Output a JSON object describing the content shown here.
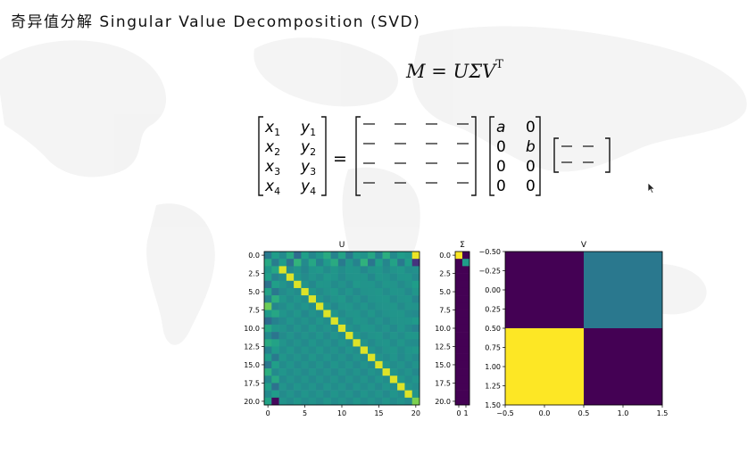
{
  "slide": {
    "title": "奇异值分解 Singular Value Decomposition (SVD)"
  },
  "formula": {
    "lhs": "M",
    "equals": "=",
    "rhs_main": "UΣV",
    "rhs_sup": "T"
  },
  "matrix_equation": {
    "lhs_rows": [
      [
        "x1",
        "y1"
      ],
      [
        "x2",
        "y2"
      ],
      [
        "x3",
        "y3"
      ],
      [
        "x4",
        "y4"
      ]
    ],
    "equals": "=",
    "u_rows": 4,
    "u_cols": 4,
    "sigma_rows": [
      [
        "a",
        "0"
      ],
      [
        "0",
        "b"
      ],
      [
        "0",
        "0"
      ],
      [
        "0",
        "0"
      ]
    ],
    "vt_rows": 2,
    "vt_cols": 2
  },
  "chart_data": [
    {
      "type": "heatmap",
      "title": "U",
      "shape": [
        21,
        21
      ],
      "xticks": [
        "0",
        "5",
        "10",
        "15",
        "20"
      ],
      "yticks": [
        "0.0",
        "2.5",
        "5.0",
        "7.5",
        "10.0",
        "12.5",
        "15.0",
        "17.5",
        "20.0"
      ],
      "cells": [
        [
          -0.18,
          0.1,
          -0.05,
          0.2,
          -0.3,
          0.12,
          -0.08,
          0.05,
          0.22,
          -0.1,
          0.15,
          -0.2,
          0.08,
          0.02,
          0.18,
          -0.12,
          0.25,
          -0.05,
          0.1,
          0.05,
          0.95
        ],
        [
          0.2,
          -0.15,
          0.1,
          -0.25,
          0.3,
          -0.05,
          0.18,
          -0.12,
          0.08,
          0.22,
          -0.18,
          0.05,
          -0.1,
          0.28,
          -0.22,
          0.12,
          -0.08,
          0.15,
          -0.2,
          0.1,
          -0.7
        ],
        [
          0.05,
          0.18,
          0.9,
          -0.05,
          0.02,
          -0.08,
          0.04,
          0.06,
          -0.03,
          0.05,
          -0.02,
          0.04,
          0.03,
          -0.06,
          0.02,
          0.05,
          -0.04,
          0.03,
          0.06,
          -0.02,
          0.0
        ],
        [
          0.12,
          -0.1,
          -0.02,
          0.9,
          0.05,
          -0.04,
          0.03,
          -0.02,
          0.06,
          0.04,
          -0.05,
          0.02,
          0.03,
          0.04,
          -0.06,
          0.05,
          0.02,
          -0.03,
          0.04,
          0.05,
          -0.05
        ],
        [
          -0.25,
          0.12,
          0.03,
          -0.05,
          0.9,
          0.02,
          -0.06,
          0.05,
          0.04,
          -0.03,
          0.02,
          -0.05,
          0.06,
          0.03,
          0.04,
          -0.02,
          0.05,
          0.03,
          -0.04,
          0.02,
          0.1
        ],
        [
          0.15,
          -0.2,
          -0.04,
          0.02,
          -0.03,
          0.9,
          0.05,
          -0.04,
          0.02,
          0.06,
          -0.03,
          0.04,
          -0.05,
          0.02,
          0.03,
          0.05,
          -0.02,
          0.04,
          0.03,
          -0.05,
          0.05
        ],
        [
          -0.1,
          0.25,
          0.05,
          -0.03,
          0.04,
          -0.02,
          0.9,
          0.03,
          -0.05,
          0.02,
          0.06,
          -0.04,
          0.03,
          -0.05,
          0.02,
          0.04,
          0.05,
          -0.03,
          0.02,
          0.04,
          -0.08
        ],
        [
          0.55,
          -0.08,
          -0.03,
          0.05,
          -0.02,
          0.04,
          -0.03,
          0.9,
          0.04,
          -0.06,
          0.03,
          0.05,
          -0.02,
          0.04,
          -0.03,
          0.02,
          0.03,
          0.05,
          -0.04,
          0.03,
          0.02
        ],
        [
          0.08,
          0.18,
          0.04,
          -0.02,
          0.05,
          -0.06,
          0.02,
          -0.03,
          0.9,
          0.05,
          -0.04,
          0.03,
          0.04,
          -0.02,
          0.05,
          -0.03,
          0.02,
          0.04,
          0.05,
          -0.02,
          -0.05
        ],
        [
          -0.3,
          -0.12,
          -0.05,
          0.04,
          -0.03,
          0.02,
          -0.04,
          0.05,
          -0.02,
          0.9,
          0.04,
          -0.03,
          0.05,
          0.02,
          -0.04,
          0.03,
          -0.05,
          0.02,
          0.03,
          0.04,
          0.08
        ],
        [
          0.18,
          0.05,
          0.02,
          -0.05,
          0.03,
          -0.04,
          0.05,
          -0.02,
          0.03,
          -0.04,
          0.9,
          0.02,
          -0.03,
          0.05,
          0.04,
          -0.02,
          0.03,
          -0.05,
          0.04,
          -0.03,
          -0.1
        ],
        [
          -0.05,
          -0.22,
          -0.04,
          0.03,
          -0.05,
          0.02,
          -0.03,
          0.04,
          -0.05,
          0.03,
          -0.02,
          0.9,
          0.04,
          -0.03,
          0.02,
          0.05,
          -0.04,
          0.03,
          -0.02,
          0.05,
          0.05
        ],
        [
          0.22,
          0.15,
          0.03,
          -0.04,
          0.02,
          -0.05,
          0.04,
          -0.03,
          0.02,
          -0.05,
          0.04,
          -0.02,
          0.9,
          0.03,
          -0.05,
          0.02,
          0.04,
          -0.03,
          0.05,
          -0.02,
          -0.03
        ],
        [
          -0.12,
          0.08,
          -0.02,
          0.05,
          -0.04,
          0.03,
          -0.02,
          0.05,
          -0.03,
          0.02,
          -0.05,
          0.04,
          -0.02,
          0.9,
          0.03,
          -0.04,
          0.02,
          0.05,
          -0.03,
          0.04,
          0.06
        ],
        [
          0.1,
          -0.18,
          0.05,
          -0.02,
          0.03,
          -0.04,
          0.05,
          -0.02,
          0.04,
          -0.03,
          0.02,
          -0.05,
          0.03,
          -0.04,
          0.9,
          0.02,
          -0.03,
          0.04,
          -0.05,
          0.02,
          -0.04
        ],
        [
          -0.2,
          0.12,
          -0.03,
          0.04,
          -0.05,
          0.02,
          -0.04,
          0.03,
          -0.05,
          0.04,
          -0.02,
          0.03,
          -0.05,
          0.02,
          -0.04,
          0.9,
          0.05,
          -0.02,
          0.03,
          -0.05,
          0.02
        ],
        [
          0.25,
          -0.05,
          0.04,
          -0.03,
          0.02,
          -0.05,
          0.03,
          -0.04,
          0.02,
          -0.05,
          0.03,
          -0.04,
          0.02,
          -0.05,
          0.03,
          -0.02,
          0.9,
          0.04,
          -0.03,
          0.02,
          -0.06
        ],
        [
          -0.08,
          0.2,
          -0.05,
          0.02,
          -0.04,
          0.03,
          -0.05,
          0.02,
          -0.04,
          0.03,
          -0.05,
          0.02,
          -0.04,
          0.03,
          -0.05,
          0.04,
          -0.02,
          0.9,
          0.05,
          -0.03,
          0.04
        ],
        [
          0.12,
          -0.25,
          0.03,
          -0.05,
          0.04,
          -0.02,
          0.03,
          -0.05,
          0.04,
          -0.02,
          0.03,
          -0.05,
          0.04,
          -0.02,
          0.03,
          -0.05,
          0.04,
          -0.02,
          0.9,
          0.03,
          -0.02
        ],
        [
          -0.05,
          0.1,
          -0.04,
          0.03,
          -0.05,
          0.04,
          -0.02,
          0.03,
          -0.05,
          0.04,
          -0.02,
          0.03,
          -0.05,
          0.04,
          -0.02,
          0.03,
          -0.05,
          0.04,
          -0.02,
          0.9,
          0.03
        ],
        [
          0.15,
          -0.95,
          0.02,
          -0.04,
          0.05,
          -0.03,
          0.02,
          -0.04,
          0.05,
          -0.03,
          0.02,
          -0.04,
          0.05,
          -0.03,
          0.02,
          -0.04,
          0.05,
          -0.03,
          0.02,
          -0.04,
          0.6
        ]
      ],
      "vmin": -1,
      "vmax": 1
    },
    {
      "type": "heatmap",
      "title": "Σ",
      "shape": [
        21,
        2
      ],
      "xticks": [
        "0",
        "1"
      ],
      "yticks": [
        "0.0",
        "2.5",
        "5.0",
        "7.5",
        "10.0",
        "12.5",
        "15.0",
        "17.5",
        "20.0"
      ],
      "cells": [
        [
          1.0,
          0.0
        ],
        [
          0.0,
          0.55
        ]
      ],
      "fill": 0.0,
      "vmin": 0,
      "vmax": 1
    },
    {
      "type": "heatmap",
      "title": "V",
      "shape": [
        2,
        2
      ],
      "xlim": [
        -0.5,
        1.5
      ],
      "ylim": [
        1.5,
        -0.5
      ],
      "xticks": [
        "−0.5",
        "0.0",
        "0.5",
        "1.0",
        "1.5"
      ],
      "yticks": [
        "−0.50",
        "−0.25",
        "0.00",
        "0.25",
        "0.50",
        "0.75",
        "1.00",
        "1.25",
        "1.50"
      ],
      "cells": [
        [
          0.0,
          0.4
        ],
        [
          1.0,
          0.0
        ]
      ],
      "vmin": 0,
      "vmax": 1
    }
  ]
}
